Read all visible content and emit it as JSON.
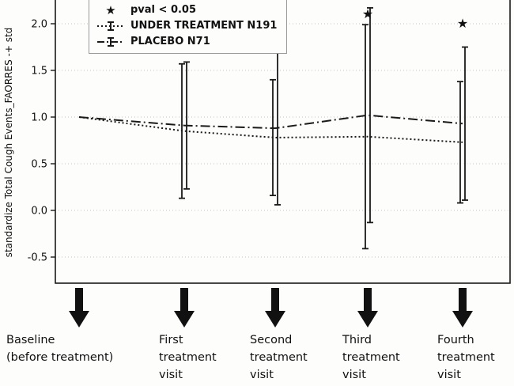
{
  "chart_data": {
    "type": "line",
    "title": "",
    "xlabel": "",
    "ylabel": "standardize Total Cough Events_FAORRES -+ std",
    "yticks": [
      2.0,
      1.5,
      1.0,
      0.5,
      0.0,
      -0.5
    ],
    "ylim": [
      -0.78,
      2.25
    ],
    "grid": true,
    "legend": {
      "position": "upper left",
      "pval_label": "pval < 0.05"
    },
    "x": [
      0,
      1,
      2,
      3,
      4
    ],
    "series": [
      {
        "name": "UNDER TREATMENT N191",
        "style": "dotted",
        "values": [
          1.0,
          0.85,
          0.78,
          0.79,
          0.73
        ],
        "err": [
          0,
          0.72,
          0.62,
          1.2,
          0.65
        ]
      },
      {
        "name": "PLACEBO N71",
        "style": "dashdot",
        "values": [
          1.0,
          0.91,
          0.88,
          1.02,
          0.93
        ],
        "err": [
          0,
          0.68,
          0.82,
          1.15,
          0.82
        ]
      }
    ],
    "significance_stars": [
      {
        "visit": 3,
        "y": 2.1
      },
      {
        "visit": 4,
        "y": 2.0
      }
    ],
    "visits": [
      {
        "label": "Baseline\n(before treatment)"
      },
      {
        "label": "First\ntreatment\nvisit"
      },
      {
        "label": "Second\ntreatment\nvisit"
      },
      {
        "label": "Third\ntreatment\nvisit"
      },
      {
        "label": "Fourth\ntreatment\nvisit"
      }
    ]
  },
  "colors": {
    "line": "#1a1a1a",
    "grid": "#c4c4c4",
    "text": "#111111",
    "background": "#fdfdfb"
  }
}
